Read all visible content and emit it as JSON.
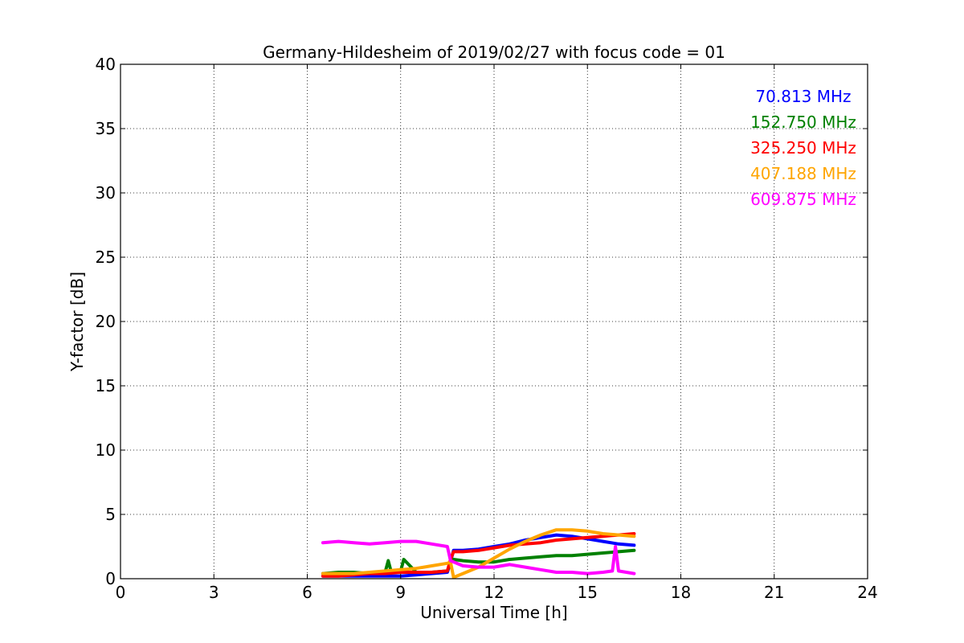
{
  "chart_data": {
    "type": "line",
    "title": "Germany-Hildesheim of 2019/02/27 with focus code = 01",
    "xlabel": "Universal Time [h]",
    "ylabel": "Y-factor [dB]",
    "xlim": [
      0,
      24
    ],
    "ylim": [
      0,
      40
    ],
    "xticks": [
      "0",
      "3",
      "6",
      "9",
      "12",
      "15",
      "18",
      "21",
      "24"
    ],
    "yticks": [
      "0",
      "5",
      "10",
      "15",
      "20",
      "25",
      "30",
      "35",
      "40"
    ],
    "grid": true,
    "legend_position": "top-right",
    "series": [
      {
        "name": "70.813 MHz",
        "color": "#0000ff",
        "x": [
          6.5,
          7.0,
          7.5,
          8.0,
          8.5,
          9.0,
          9.5,
          10.0,
          10.5,
          10.6,
          10.7,
          11.0,
          11.5,
          12.0,
          12.5,
          13.0,
          13.5,
          14.0,
          14.5,
          15.0,
          15.5,
          16.0,
          16.5
        ],
        "y": [
          0.2,
          0.2,
          0.2,
          0.2,
          0.2,
          0.2,
          0.3,
          0.4,
          0.5,
          1.3,
          2.2,
          2.2,
          2.3,
          2.5,
          2.7,
          3.0,
          3.2,
          3.4,
          3.3,
          3.1,
          2.9,
          2.7,
          2.6
        ]
      },
      {
        "name": "152.750 MHz",
        "color": "#008000",
        "x": [
          6.5,
          7.0,
          7.5,
          8.0,
          8.5,
          8.6,
          8.7,
          9.0,
          9.1,
          9.5,
          10.0,
          10.5,
          10.6,
          10.7,
          11.0,
          11.5,
          12.0,
          12.5,
          13.0,
          13.5,
          14.0,
          14.5,
          15.0,
          15.5,
          16.0,
          16.5
        ],
        "y": [
          0.4,
          0.5,
          0.5,
          0.4,
          0.5,
          1.4,
          0.5,
          0.6,
          1.5,
          0.5,
          0.5,
          0.6,
          1.3,
          1.5,
          1.4,
          1.3,
          1.3,
          1.5,
          1.6,
          1.7,
          1.8,
          1.8,
          1.9,
          2.0,
          2.1,
          2.2
        ]
      },
      {
        "name": "325.250 MHz",
        "color": "#ff0000",
        "x": [
          6.5,
          7.0,
          7.5,
          8.0,
          8.5,
          9.0,
          9.5,
          10.0,
          10.5,
          10.6,
          10.7,
          11.0,
          11.5,
          12.0,
          12.5,
          13.0,
          13.5,
          14.0,
          14.5,
          15.0,
          15.5,
          16.0,
          16.5
        ],
        "y": [
          0.2,
          0.2,
          0.3,
          0.4,
          0.4,
          0.5,
          0.5,
          0.5,
          0.6,
          1.5,
          2.1,
          2.1,
          2.2,
          2.4,
          2.6,
          2.7,
          2.8,
          3.0,
          3.1,
          3.2,
          3.3,
          3.4,
          3.5
        ]
      },
      {
        "name": "407.188 MHz",
        "color": "#ffa500",
        "x": [
          6.5,
          7.0,
          7.5,
          8.0,
          8.5,
          9.0,
          9.5,
          10.0,
          10.5,
          10.6,
          10.7,
          11.0,
          11.5,
          12.0,
          12.5,
          13.0,
          13.5,
          14.0,
          14.5,
          15.0,
          15.5,
          16.0,
          16.5
        ],
        "y": [
          0.4,
          0.4,
          0.4,
          0.5,
          0.6,
          0.7,
          0.8,
          1.0,
          1.2,
          1.3,
          0.1,
          0.4,
          0.9,
          1.6,
          2.3,
          2.9,
          3.4,
          3.8,
          3.8,
          3.7,
          3.5,
          3.4,
          3.3
        ]
      },
      {
        "name": "609.875 MHz",
        "color": "#ff00ff",
        "x": [
          6.5,
          7.0,
          7.5,
          8.0,
          8.5,
          9.0,
          9.5,
          10.0,
          10.5,
          10.6,
          10.7,
          11.0,
          11.5,
          12.0,
          12.5,
          13.0,
          13.5,
          14.0,
          14.5,
          15.0,
          15.5,
          15.8,
          15.9,
          16.0,
          16.5
        ],
        "y": [
          2.8,
          2.9,
          2.8,
          2.7,
          2.8,
          2.9,
          2.9,
          2.7,
          2.5,
          1.4,
          1.3,
          1.0,
          0.9,
          0.9,
          1.1,
          0.9,
          0.7,
          0.5,
          0.5,
          0.4,
          0.5,
          0.6,
          2.5,
          0.6,
          0.4
        ]
      }
    ]
  }
}
